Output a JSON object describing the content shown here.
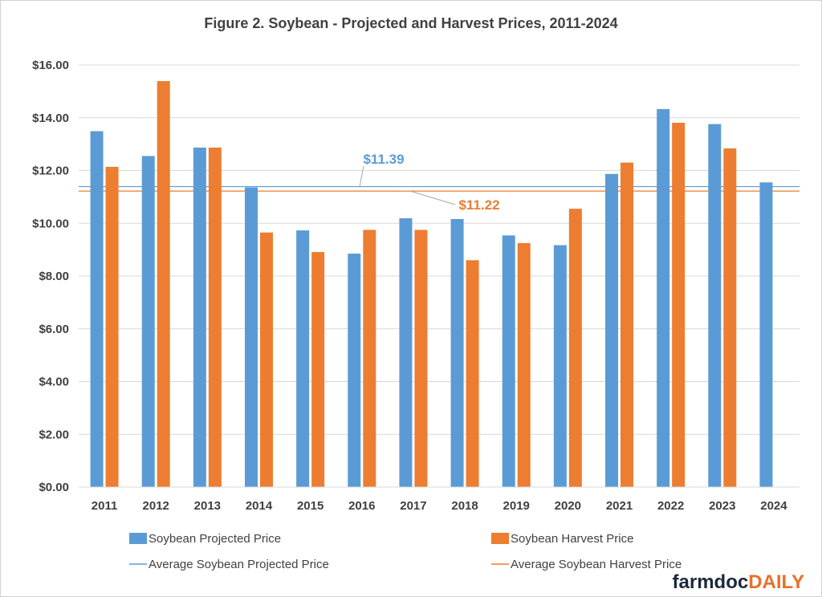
{
  "colors": {
    "projected": "#5b9bd5",
    "harvest": "#ed7d31",
    "grid": "#d9d9d9",
    "text": "#404040"
  },
  "logo": {
    "part1": "farmdoc",
    "part2": "DAILY"
  },
  "chart_data": {
    "type": "bar",
    "title": "Figure  2. Soybean  - Projected  and  Harvest  Prices,  2011-2024",
    "xlabel": "",
    "ylabel": "",
    "ylim": [
      0,
      16
    ],
    "yticks": [
      0,
      2,
      4,
      6,
      8,
      10,
      12,
      14,
      16
    ],
    "ytick_labels": [
      "$0.00",
      "$2.00",
      "$4.00",
      "$6.00",
      "$8.00",
      "$10.00",
      "$12.00",
      "$14.00",
      "$16.00"
    ],
    "grid": true,
    "legend_position": "bottom",
    "categories": [
      "2011",
      "2012",
      "2013",
      "2014",
      "2015",
      "2016",
      "2017",
      "2018",
      "2019",
      "2020",
      "2021",
      "2022",
      "2023",
      "2024"
    ],
    "series": [
      {
        "name": "Soybean Projected  Price",
        "color": "#5b9bd5",
        "values": [
          13.49,
          12.55,
          12.87,
          11.36,
          9.73,
          8.85,
          10.19,
          10.16,
          9.54,
          9.17,
          11.87,
          14.33,
          13.76,
          11.55
        ]
      },
      {
        "name": "Soybean Harvest Price",
        "color": "#ed7d31",
        "values": [
          12.14,
          15.39,
          12.87,
          9.65,
          8.91,
          9.75,
          9.75,
          8.6,
          9.25,
          10.55,
          12.3,
          13.81,
          12.84,
          null
        ]
      }
    ],
    "reference_lines": [
      {
        "name": "Average Soybean Projected Price",
        "value": 11.39,
        "label": "$11.39",
        "color": "#5b9bd5"
      },
      {
        "name": "Average Soybean Harvest Price",
        "value": 11.22,
        "label": "$11.22",
        "color": "#ed7d31"
      }
    ]
  }
}
